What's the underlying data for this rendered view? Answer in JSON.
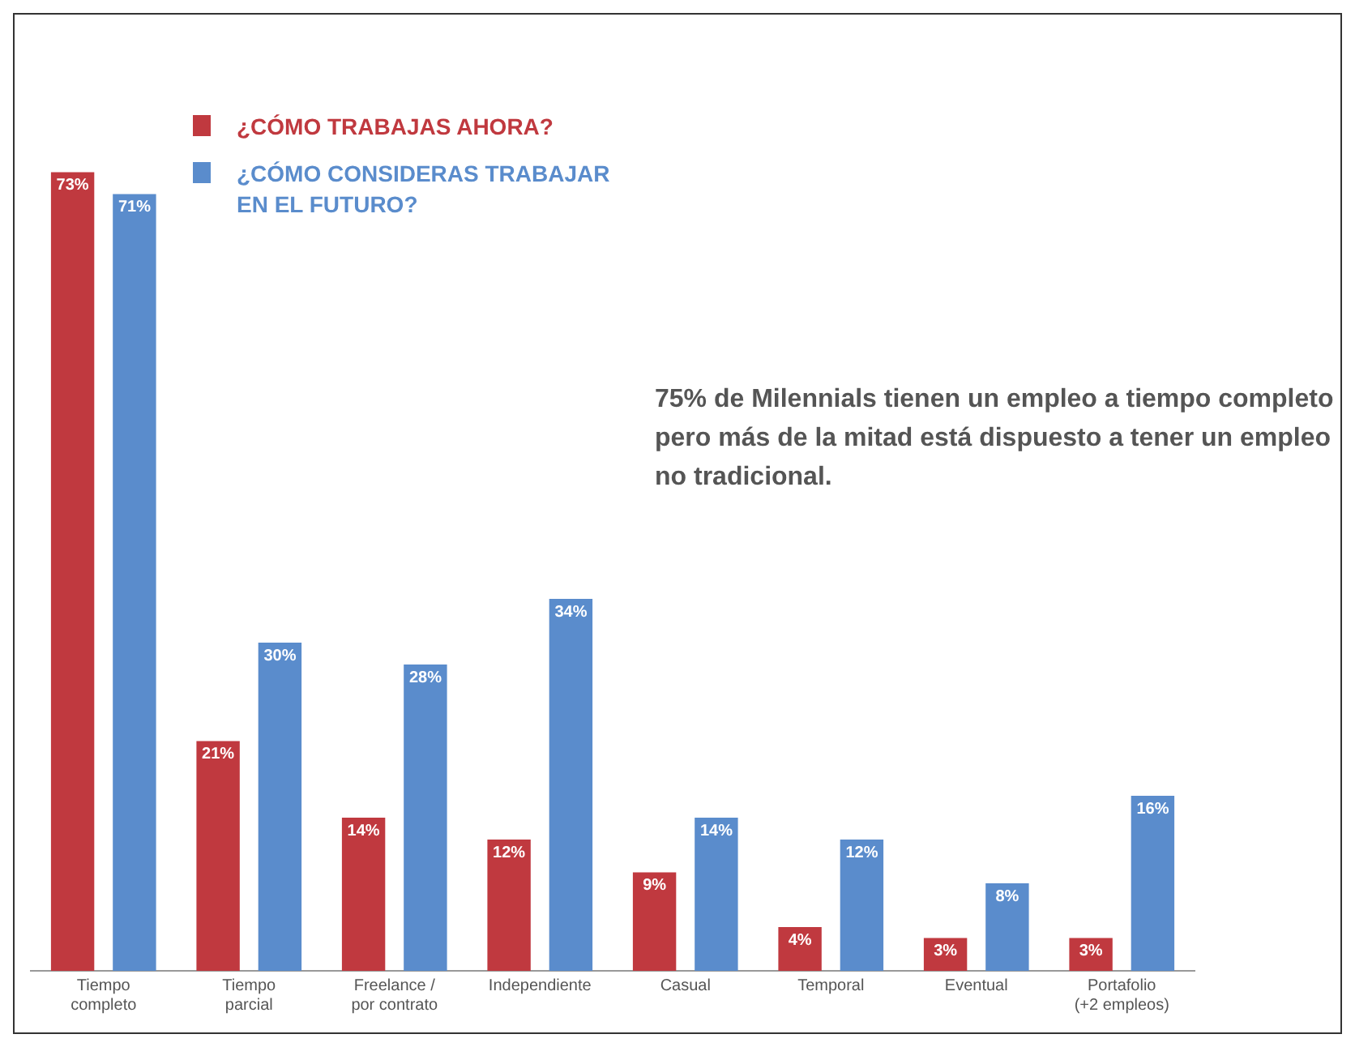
{
  "chart_data": {
    "type": "bar",
    "categories": [
      "Tiempo\ncompleto",
      "Tiempo\nparcial",
      "Freelance /\npor contrato",
      "Independiente",
      "Casual",
      "Temporal",
      "Eventual",
      "Portafolio\n(+2 empleos)"
    ],
    "series": [
      {
        "name": "¿CÓMO TRABAJAS AHORA?",
        "color": "#c0393f",
        "values": [
          73,
          21,
          14,
          12,
          9,
          4,
          3,
          3
        ],
        "value_labels": [
          "73%",
          "21%",
          "14%",
          "12%",
          "9%",
          "4%",
          "3%",
          "3%"
        ]
      },
      {
        "name": "¿CÓMO CONSIDERAS TRABAJAR EN EL FUTURO?",
        "color": "#5a8ccc",
        "values": [
          71,
          30,
          28,
          34,
          14,
          12,
          8,
          16
        ],
        "value_labels": [
          "71%",
          "30%",
          "28%",
          "34%",
          "14%",
          "12%",
          "8%",
          "16%"
        ]
      }
    ],
    "annotations": [
      "75% de Milennials tienen un empleo a tiempo completo pero más de la mitad está dispuesto a tener un empleo no tradicional."
    ],
    "legend": "top left",
    "grid": false,
    "tick_labels": "x"
  }
}
